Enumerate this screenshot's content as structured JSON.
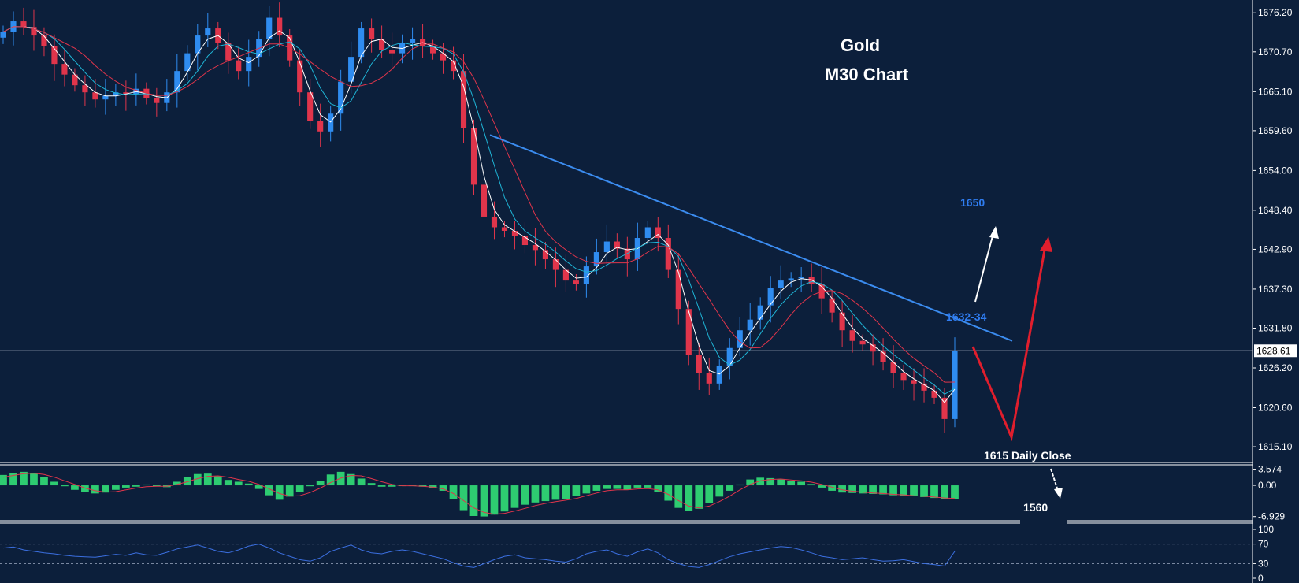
{
  "colors": {
    "background": "#0c1f3b",
    "grid_line": "#ffffff",
    "bull": "#2f8cf0",
    "bear": "#e0354b",
    "ma_fast": "#ffffff",
    "ma_mid": "#1fb5d6",
    "ma_slow": "#e0354b",
    "trendline": "#3b8cf0",
    "histogram": "#2ecc71",
    "signal": "#e0354b",
    "rsi": "#3b6fe0",
    "annotation_blue": "#2f7cf0",
    "annotation_white": "#ffffff",
    "arrow_red": "#e01e2d",
    "current_price_box": "#ffffff"
  },
  "chart_data": {
    "type": "candlestick",
    "title": "Gold",
    "subtitle": "M30 Chart",
    "price_axis": {
      "ticks": [
        "1676.20",
        "1670.70",
        "1665.10",
        "1659.60",
        "1654.00",
        "1648.40",
        "1642.90",
        "1637.30",
        "1631.80",
        "1626.20",
        "1620.60",
        "1615.10"
      ],
      "current_price": "1628.61",
      "ylim": [
        1613,
        1678
      ]
    },
    "candles_close": [
      1673.5,
      1675.0,
      1674.2,
      1673.0,
      1671.5,
      1669.0,
      1667.5,
      1666.0,
      1665.0,
      1664.0,
      1664.5,
      1665.0,
      1664.8,
      1665.5,
      1664.2,
      1663.5,
      1665.0,
      1668.0,
      1670.5,
      1673.0,
      1674.0,
      1672.0,
      1669.5,
      1668.0,
      1670.0,
      1672.5,
      1675.5,
      1673.0,
      1669.5,
      1665.0,
      1661.0,
      1659.5,
      1662.0,
      1666.5,
      1670.0,
      1674.0,
      1672.5,
      1671.0,
      1670.5,
      1672.0,
      1672.5,
      1671.5,
      1670.5,
      1669.5,
      1668.0,
      1660.0,
      1652.0,
      1647.5,
      1646.0,
      1645.5,
      1644.8,
      1643.5,
      1642.8,
      1641.5,
      1640.0,
      1638.5,
      1638.0,
      1640.5,
      1642.5,
      1644.0,
      1643.0,
      1641.5,
      1644.5,
      1646.0,
      1644.5,
      1640.0,
      1634.5,
      1628.0,
      1625.5,
      1624.0,
      1626.5,
      1629.0,
      1631.5,
      1633.0,
      1635.0,
      1637.5,
      1638.5,
      1638.8,
      1639.0,
      1638.0,
      1636.0,
      1634.0,
      1631.5,
      1630.0,
      1629.5,
      1628.5,
      1627.0,
      1625.5,
      1624.5,
      1624.0,
      1623.0,
      1622.0,
      1619.0,
      1628.61
    ],
    "trendline": {
      "from": 1659.0,
      "to": 1630.0
    },
    "annotations": {
      "target_high": "1650",
      "resistance": "1632-34",
      "daily_close": "1615 Daily Close",
      "target_low": "1560"
    },
    "macd": {
      "ticks": [
        "3.574",
        "0.00",
        "-6.929"
      ],
      "ylim": [
        -7.5,
        4.2
      ],
      "histogram": [
        2.3,
        2.8,
        3.0,
        2.7,
        1.8,
        0.8,
        -0.2,
        -1.0,
        -1.5,
        -1.8,
        -1.6,
        -1.0,
        -0.5,
        -0.3,
        0.2,
        0.0,
        -0.4,
        0.8,
        1.8,
        2.5,
        2.6,
        2.0,
        1.2,
        0.8,
        0.4,
        -0.8,
        -2.2,
        -3.2,
        -2.5,
        -1.5,
        -0.2,
        1.0,
        2.4,
        3.0,
        2.5,
        1.5,
        0.5,
        -0.3,
        -0.3,
        -0.1,
        0.0,
        -0.3,
        -0.6,
        -1.2,
        -3.0,
        -5.5,
        -6.8,
        -6.9,
        -6.5,
        -5.8,
        -5.0,
        -4.3,
        -3.8,
        -3.5,
        -3.2,
        -3.0,
        -2.4,
        -1.8,
        -1.2,
        -0.8,
        -0.8,
        -1.0,
        -0.5,
        -0.5,
        -1.5,
        -3.4,
        -5.0,
        -5.7,
        -5.2,
        -4.0,
        -2.5,
        -1.2,
        0.2,
        1.3,
        1.7,
        1.6,
        1.3,
        1.0,
        0.8,
        0.3,
        -0.5,
        -1.2,
        -1.6,
        -1.7,
        -1.8,
        -1.9,
        -2.0,
        -2.2,
        -2.3,
        -2.4,
        -2.6,
        -2.8,
        -3.0,
        -3.0
      ],
      "signal": [
        1.8,
        2.2,
        2.6,
        2.7,
        2.4,
        1.8,
        1.0,
        0.2,
        -0.6,
        -1.2,
        -1.5,
        -1.4,
        -1.0,
        -0.6,
        -0.3,
        -0.2,
        -0.2,
        0.2,
        0.8,
        1.5,
        2.0,
        2.1,
        1.8,
        1.3,
        0.9,
        0.2,
        -0.8,
        -1.8,
        -2.4,
        -2.3,
        -1.6,
        -0.6,
        0.6,
        1.6,
        2.2,
        2.1,
        1.5,
        0.8,
        0.2,
        -0.1,
        -0.1,
        -0.2,
        -0.4,
        -0.8,
        -1.8,
        -3.4,
        -5.0,
        -6.0,
        -6.4,
        -6.2,
        -5.7,
        -5.1,
        -4.5,
        -4.0,
        -3.6,
        -3.3,
        -2.9,
        -2.3,
        -1.7,
        -1.2,
        -1.0,
        -1.0,
        -0.8,
        -0.7,
        -1.0,
        -2.0,
        -3.4,
        -4.6,
        -5.0,
        -4.6,
        -3.6,
        -2.4,
        -1.0,
        0.2,
        1.0,
        1.3,
        1.4,
        1.2,
        1.0,
        0.7,
        0.2,
        -0.4,
        -1.0,
        -1.3,
        -1.5,
        -1.7,
        -1.8,
        -2.0,
        -2.1,
        -2.3,
        -2.4,
        -2.6,
        -2.8,
        -2.9
      ]
    },
    "rsi": {
      "ticks": [
        "100",
        "70",
        "30",
        "0"
      ],
      "ylim": [
        0,
        100
      ],
      "levels": [
        70,
        30
      ],
      "values": [
        62,
        64,
        58,
        55,
        52,
        50,
        47,
        45,
        44,
        43,
        46,
        49,
        47,
        52,
        48,
        47,
        53,
        60,
        64,
        68,
        62,
        55,
        52,
        58,
        66,
        70,
        62,
        52,
        45,
        38,
        35,
        42,
        55,
        62,
        68,
        58,
        52,
        50,
        55,
        58,
        55,
        50,
        45,
        40,
        32,
        25,
        22,
        30,
        38,
        45,
        48,
        42,
        40,
        38,
        35,
        33,
        40,
        50,
        55,
        58,
        50,
        45,
        54,
        60,
        52,
        38,
        30,
        24,
        22,
        28,
        36,
        44,
        50,
        54,
        58,
        62,
        65,
        63,
        58,
        52,
        45,
        42,
        38,
        40,
        42,
        38,
        35,
        36,
        38,
        34,
        30,
        28,
        25,
        55
      ]
    }
  }
}
